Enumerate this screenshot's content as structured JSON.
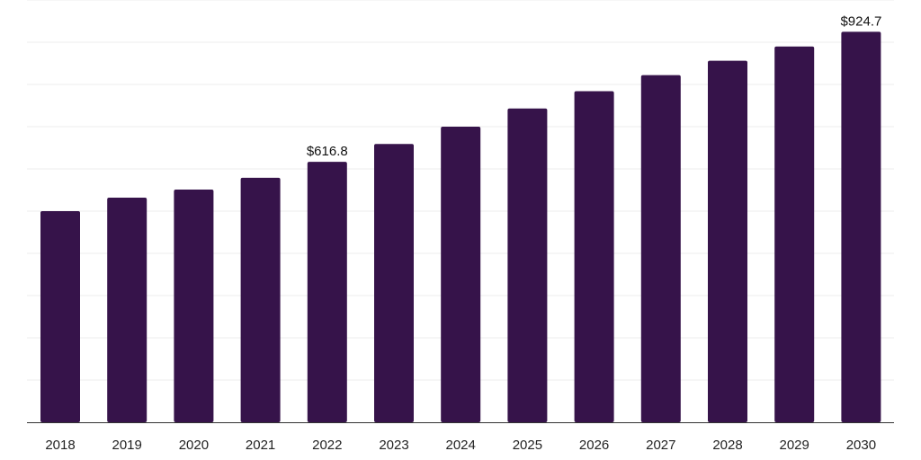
{
  "chart_data": {
    "type": "bar",
    "categories": [
      "2018",
      "2019",
      "2020",
      "2021",
      "2022",
      "2023",
      "2024",
      "2025",
      "2026",
      "2027",
      "2028",
      "2029",
      "2030"
    ],
    "series": [
      {
        "values": [
          500.0,
          532.0,
          551.0,
          579.0,
          616.8,
          659.0,
          700.0,
          743.0,
          784.0,
          822.0,
          856.0,
          890.0,
          924.7
        ]
      }
    ],
    "data_labels": [
      {
        "category": "2022",
        "text": "$616.8"
      },
      {
        "category": "2030",
        "text": "$924.7"
      }
    ],
    "ylim": [
      0,
      1000
    ],
    "grid": true,
    "legend": "none",
    "colors": {
      "bar": "#36134a",
      "grid": "#ececec",
      "axis": "#333333"
    }
  }
}
